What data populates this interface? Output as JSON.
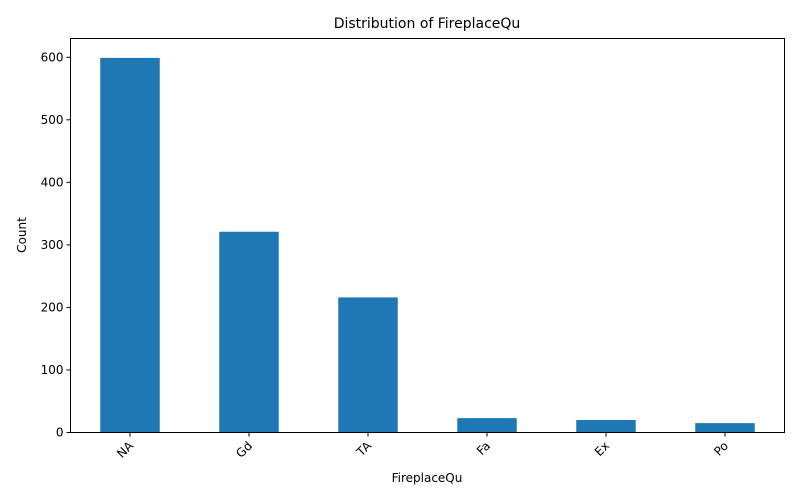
{
  "chart_data": {
    "type": "bar",
    "title": "Distribution of FireplaceQu",
    "xlabel": "FireplaceQu",
    "ylabel": "Count",
    "categories": [
      "NA",
      "Gd",
      "TA",
      "Fa",
      "Ex",
      "Po"
    ],
    "values": [
      599,
      321,
      216,
      23,
      20,
      15
    ],
    "ylim": [
      0,
      630
    ],
    "yticks": [
      0,
      100,
      200,
      300,
      400,
      500,
      600
    ],
    "bar_color": "#1f77b4",
    "grid": false,
    "legend": "none",
    "xtick_rotation": "45"
  }
}
